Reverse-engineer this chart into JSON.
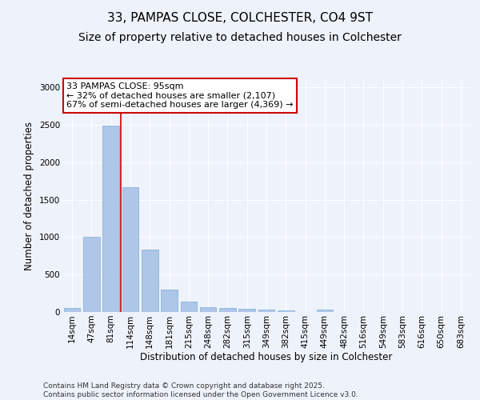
{
  "title_line1": "33, PAMPAS CLOSE, COLCHESTER, CO4 9ST",
  "title_line2": "Size of property relative to detached houses in Colchester",
  "xlabel": "Distribution of detached houses by size in Colchester",
  "ylabel": "Number of detached properties",
  "categories": [
    "14sqm",
    "47sqm",
    "81sqm",
    "114sqm",
    "148sqm",
    "181sqm",
    "215sqm",
    "248sqm",
    "282sqm",
    "315sqm",
    "349sqm",
    "382sqm",
    "415sqm",
    "449sqm",
    "482sqm",
    "516sqm",
    "549sqm",
    "583sqm",
    "616sqm",
    "650sqm",
    "683sqm"
  ],
  "values": [
    50,
    1005,
    2490,
    1670,
    830,
    295,
    140,
    65,
    55,
    40,
    30,
    20,
    0,
    30,
    0,
    0,
    0,
    0,
    0,
    0,
    0
  ],
  "bar_color": "#aec6e8",
  "bar_edgecolor": "#7aafd4",
  "vline_x_index": 2.5,
  "vline_color": "#cc0000",
  "annotation_text": "33 PAMPAS CLOSE: 95sqm\n← 32% of detached houses are smaller (2,107)\n67% of semi-detached houses are larger (4,369) →",
  "annotation_box_edgecolor": "#cc0000",
  "annotation_box_facecolor": "#ffffff",
  "ylim": [
    0,
    3100
  ],
  "yticks": [
    0,
    500,
    1000,
    1500,
    2000,
    2500,
    3000
  ],
  "background_color": "#eef2fa",
  "grid_color": "#ffffff",
  "footer_line1": "Contains HM Land Registry data © Crown copyright and database right 2025.",
  "footer_line2": "Contains public sector information licensed under the Open Government Licence v3.0.",
  "title_fontsize": 11,
  "subtitle_fontsize": 10,
  "xlabel_fontsize": 8.5,
  "ylabel_fontsize": 8.5,
  "tick_fontsize": 7.5,
  "footer_fontsize": 6.5,
  "annotation_fontsize": 8
}
